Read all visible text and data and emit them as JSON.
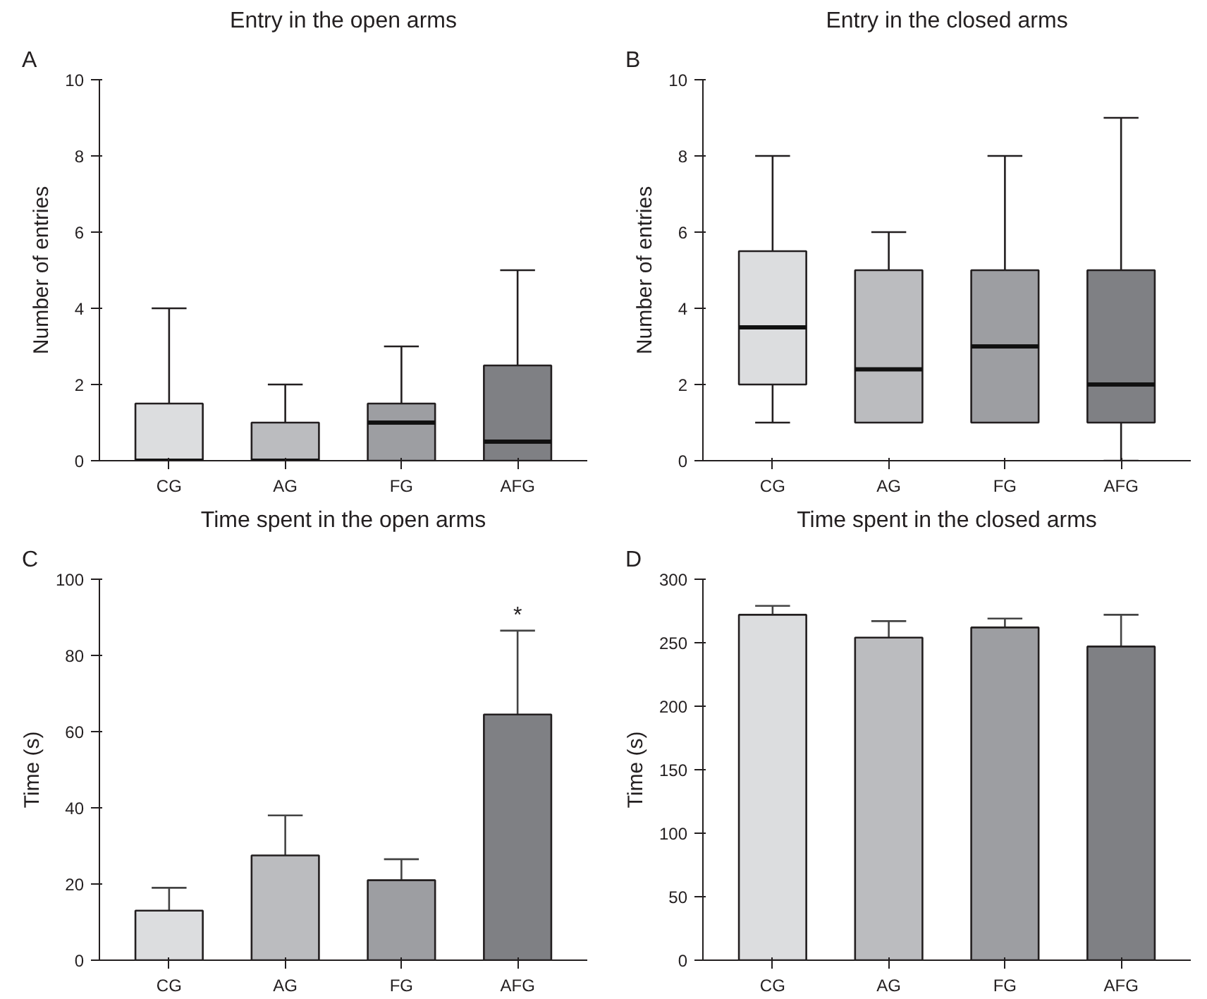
{
  "chart_data": [
    {
      "type": "box",
      "title": "Entry in the open arms",
      "ylabel": "Number of entries",
      "annotations": [
        "A"
      ],
      "categories": [
        "CG",
        "AG",
        "FG",
        "AFG"
      ],
      "colors": [
        "#dcdddf",
        "#bbbcbf",
        "#9d9ea2",
        "#7f8084"
      ],
      "boxes": [
        {
          "low": 0,
          "q1": 0,
          "median": 0,
          "q3": 1.5,
          "high": 4
        },
        {
          "low": 0,
          "q1": 0,
          "median": 0,
          "q3": 1,
          "high": 2
        },
        {
          "low": 0,
          "q1": 0,
          "median": 1,
          "q3": 1.5,
          "high": 3
        },
        {
          "low": 0,
          "q1": 0,
          "median": 0.5,
          "q3": 2.5,
          "high": 5
        }
      ],
      "ylim": [
        0,
        10
      ],
      "yticks": [
        0,
        2,
        4,
        6,
        8,
        10
      ],
      "grid": false
    },
    {
      "type": "box",
      "title": "Entry in the closed arms",
      "ylabel": "Number of entries",
      "annotations": [
        "B"
      ],
      "categories": [
        "CG",
        "AG",
        "FG",
        "AFG"
      ],
      "colors": [
        "#dcdddf",
        "#bbbcbf",
        "#9d9ea2",
        "#7f8084"
      ],
      "boxes": [
        {
          "low": 1,
          "q1": 2,
          "median": 3.5,
          "q3": 5.5,
          "high": 8
        },
        {
          "low": 1,
          "q1": 1,
          "median": 2.4,
          "q3": 5,
          "high": 6
        },
        {
          "low": 1,
          "q1": 1,
          "median": 3,
          "q3": 5,
          "high": 8
        },
        {
          "low": 0,
          "q1": 1,
          "median": 2,
          "q3": 5,
          "high": 9
        }
      ],
      "ylim": [
        0,
        10
      ],
      "yticks": [
        0,
        2,
        4,
        6,
        8,
        10
      ],
      "grid": false
    },
    {
      "type": "bar",
      "title": "Time spent in the open arms",
      "ylabel": "Time (s)",
      "annotations": [
        "C",
        "*"
      ],
      "categories": [
        "CG",
        "AG",
        "FG",
        "AFG"
      ],
      "colors": [
        "#dcdddf",
        "#bbbcbf",
        "#9d9ea2",
        "#7f8084"
      ],
      "values": [
        13,
        27.5,
        21,
        64.5
      ],
      "errors": [
        [
          13,
          19
        ],
        [
          27.5,
          38
        ],
        [
          21,
          26.5
        ],
        [
          64.5,
          86.5
        ]
      ],
      "ylim": [
        0,
        100
      ],
      "yticks": [
        0,
        20,
        40,
        60,
        80,
        100
      ],
      "grid": false
    },
    {
      "type": "bar",
      "title": "Time spent in the closed arms",
      "ylabel": "Time (s)",
      "annotations": [
        "D"
      ],
      "categories": [
        "CG",
        "AG",
        "FG",
        "AFG"
      ],
      "colors": [
        "#dcdddf",
        "#bbbcbf",
        "#9d9ea2",
        "#7f8084"
      ],
      "values": [
        272,
        254,
        262,
        247
      ],
      "errors": [
        [
          272,
          279
        ],
        [
          254,
          267
        ],
        [
          262,
          269
        ],
        [
          247,
          272
        ]
      ],
      "ylim": [
        0,
        300
      ],
      "yticks": [
        0,
        50,
        100,
        150,
        200,
        250,
        300
      ],
      "grid": false
    }
  ]
}
